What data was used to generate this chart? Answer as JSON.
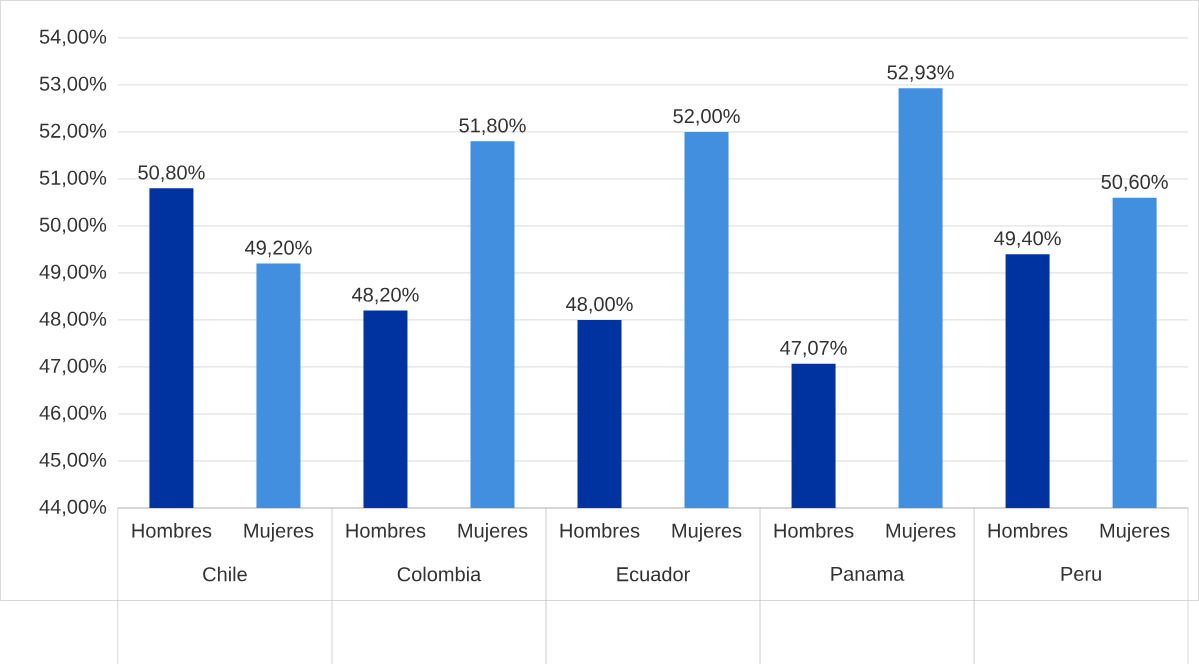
{
  "chart_data": {
    "type": "bar",
    "categories": [
      "Hombres",
      "Mujeres",
      "Hombres",
      "Mujeres",
      "Hombres",
      "Mujeres",
      "Hombres",
      "Mujeres",
      "Hombres",
      "Mujeres"
    ],
    "values": [
      50.8,
      49.2,
      48.2,
      51.8,
      48.0,
      52.0,
      47.07,
      52.93,
      49.4,
      50.6
    ],
    "colors": [
      "#0033a0",
      "#418fde",
      "#0033a0",
      "#418fde",
      "#0033a0",
      "#418fde",
      "#0033a0",
      "#418fde",
      "#0033a0",
      "#418fde"
    ],
    "value_labels": [
      "50,80%",
      "49,20%",
      "48,20%",
      "51,80%",
      "48,00%",
      "52,00%",
      "47,07%",
      "52,93%",
      "49,40%",
      "50,60%"
    ],
    "annotations": [
      "Chile",
      "Colombia",
      "Ecuador",
      "Panama",
      "Peru"
    ],
    "ylim": [
      44,
      54
    ],
    "yticks": [
      {
        "value": 44,
        "label": "44,00%"
      },
      {
        "value": 45,
        "label": "45,00%"
      },
      {
        "value": 46,
        "label": "46,00%"
      },
      {
        "value": 47,
        "label": "47,00%"
      },
      {
        "value": 48,
        "label": "48,00%"
      },
      {
        "value": 49,
        "label": "49,00%"
      },
      {
        "value": 50,
        "label": "50,00%"
      },
      {
        "value": 51,
        "label": "51,00%"
      },
      {
        "value": 52,
        "label": "52,00%"
      },
      {
        "value": 53,
        "label": "53,00%"
      },
      {
        "value": 54,
        "label": "54,00%"
      }
    ],
    "grid": "y"
  }
}
